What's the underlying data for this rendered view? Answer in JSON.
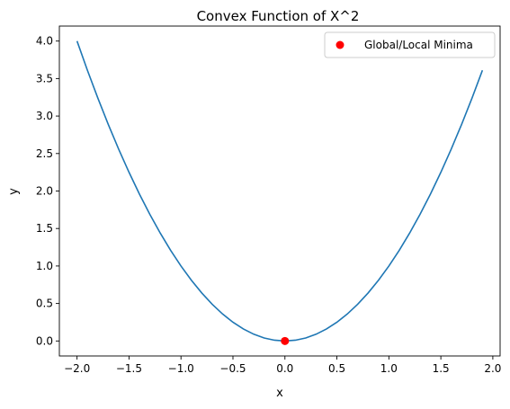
{
  "chart_data": {
    "type": "line",
    "title": "Convex Function of X^2",
    "xlabel": "x",
    "ylabel": "y",
    "xlim": [
      -2.17,
      2.07
    ],
    "ylim": [
      -0.2,
      4.2
    ],
    "xticks": [
      -2.0,
      -1.5,
      -1.0,
      -0.5,
      0.0,
      0.5,
      1.0,
      1.5,
      2.0
    ],
    "yticks": [
      0.0,
      0.5,
      1.0,
      1.5,
      2.0,
      2.5,
      3.0,
      3.5,
      4.0
    ],
    "grid": false,
    "legend_position": "top-right",
    "series": [
      {
        "type": "line",
        "color": "#1f77b4",
        "x_range": [
          -2.0,
          1.9
        ],
        "x_step": 0.1,
        "function": "x^2"
      },
      {
        "type": "scatter",
        "name": "Global/Local Minima",
        "color": "#ff0000",
        "x": [
          0.0
        ],
        "y": [
          0.0
        ]
      }
    ]
  }
}
